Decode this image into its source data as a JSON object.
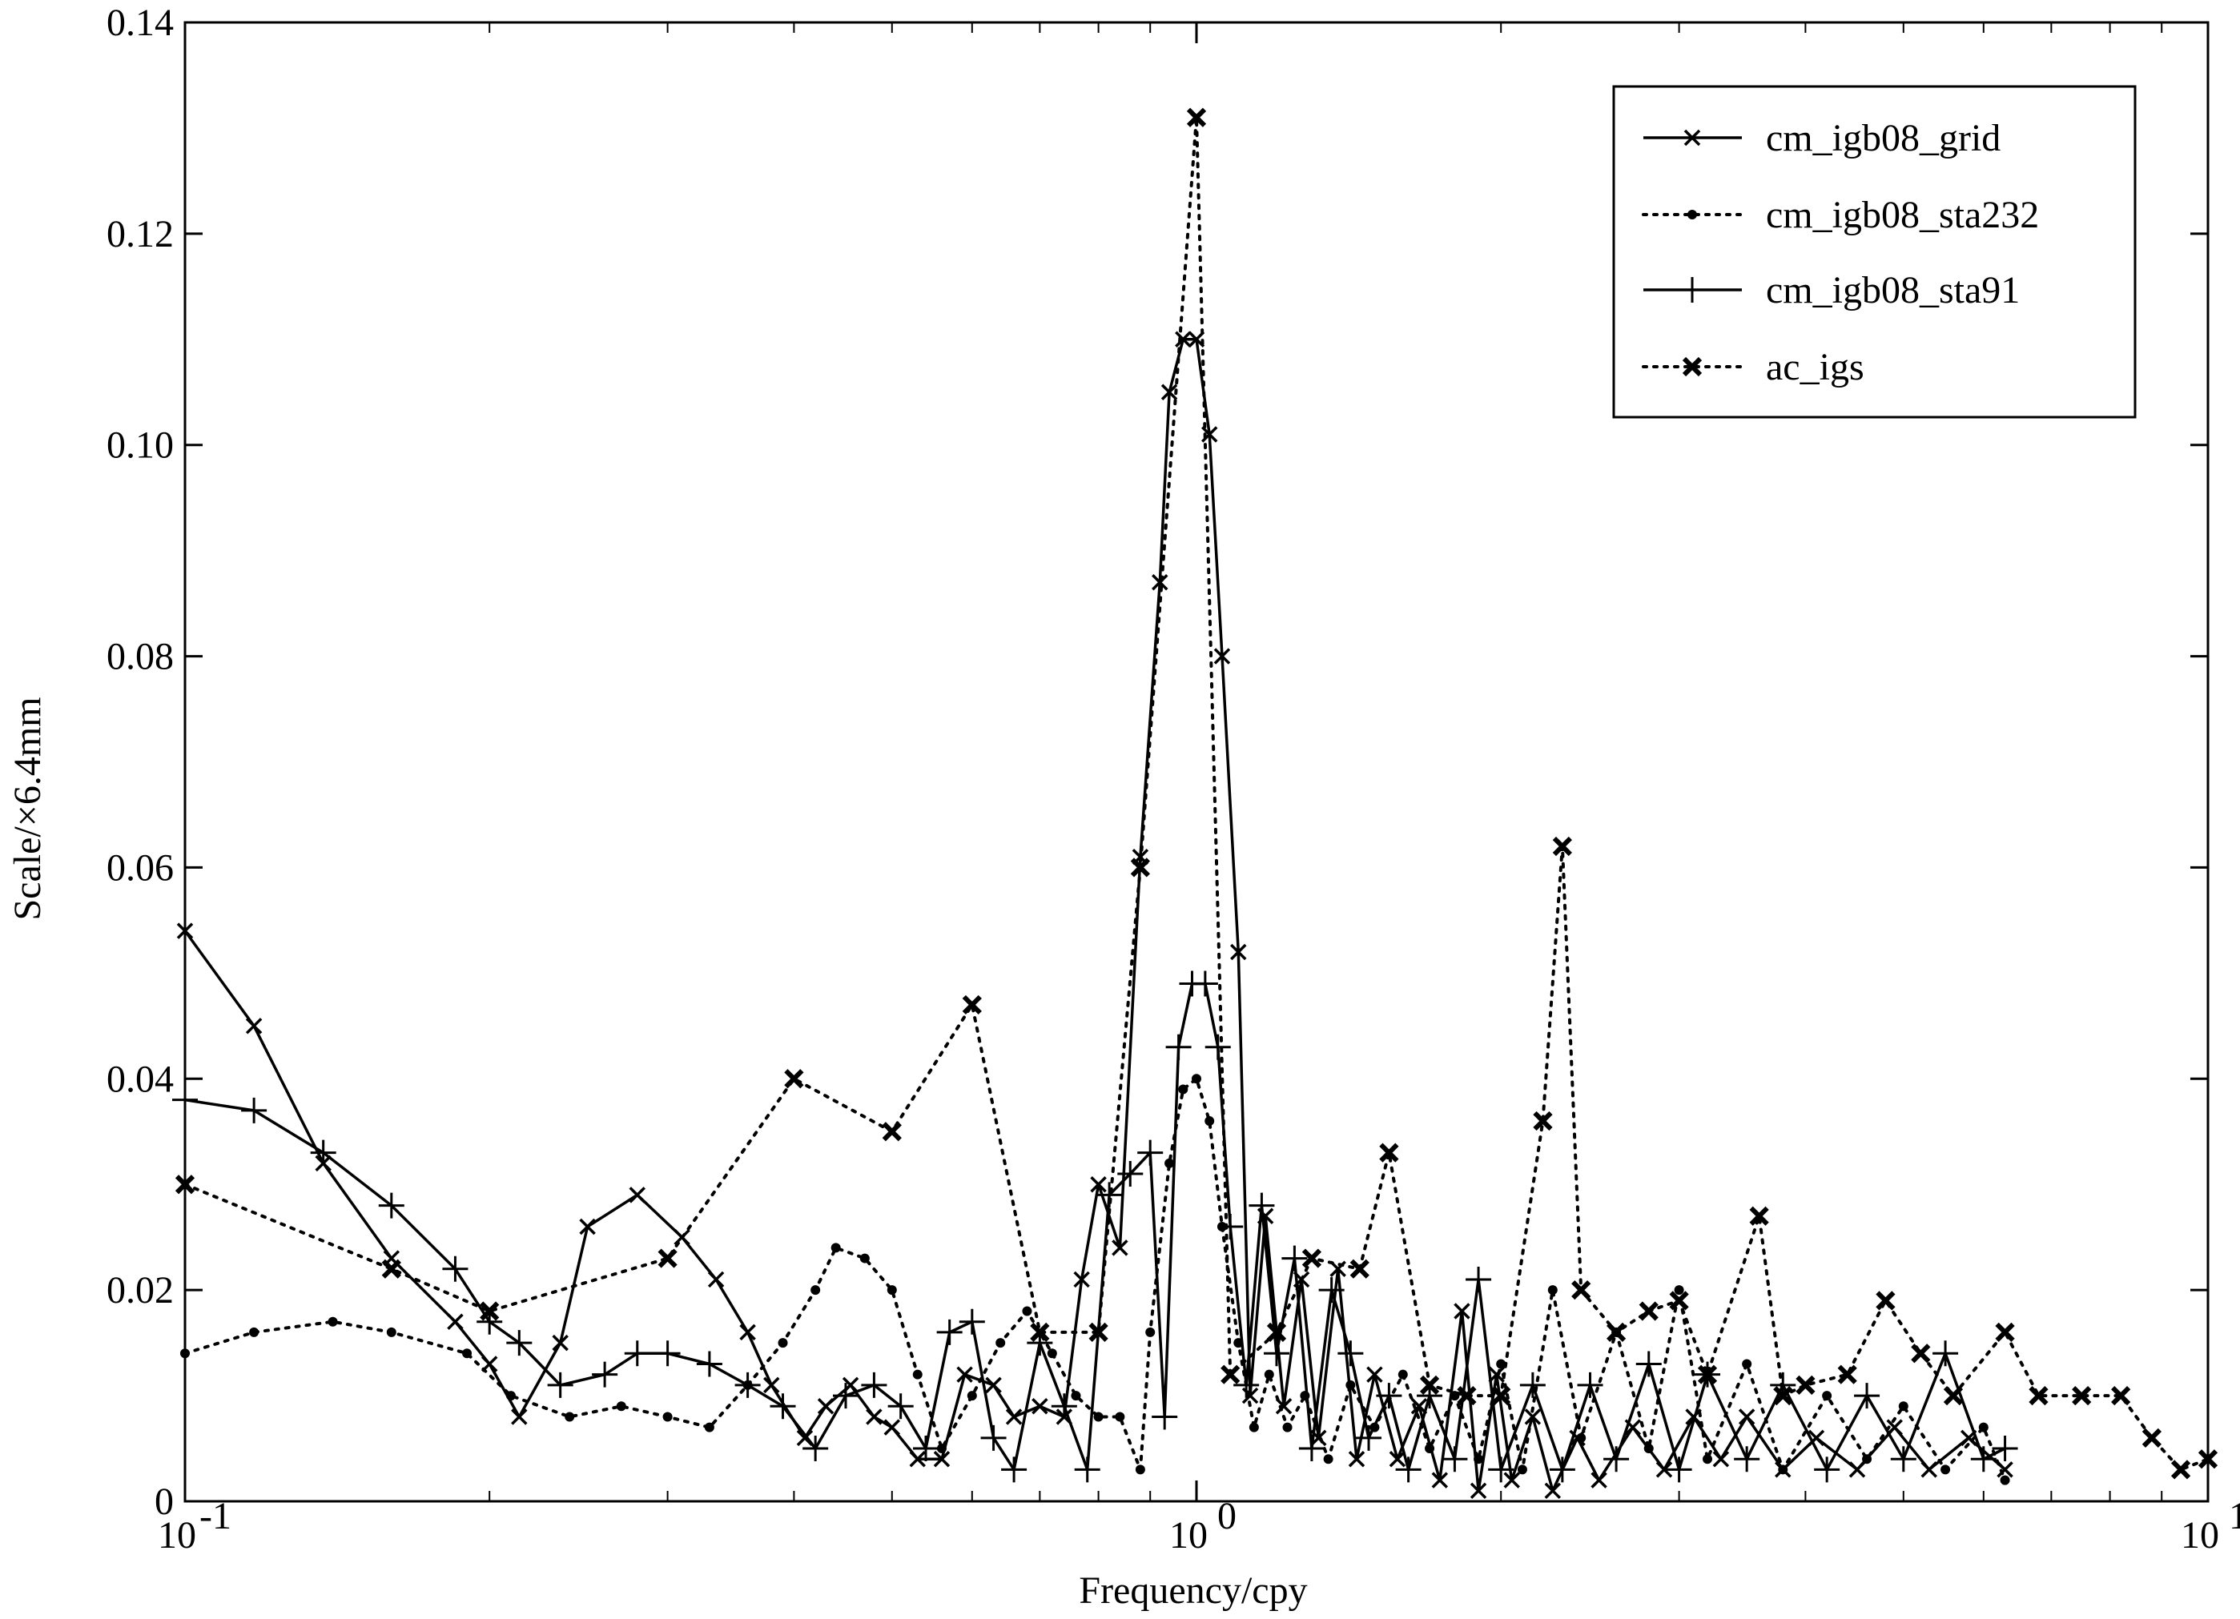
{
  "chart_data": {
    "type": "line",
    "title": "",
    "xlabel": "Frequency/cpy",
    "ylabel": "Scale/×6.4mm",
    "xscale": "log",
    "xlim": [
      0.1,
      10
    ],
    "ylim": [
      0,
      0.14
    ],
    "grid": false,
    "legend_position": "top-right",
    "x_tick_labels": [
      {
        "base": "10",
        "exp": "-1"
      },
      {
        "base": "10",
        "exp": "0"
      },
      {
        "base": "10",
        "exp": "1"
      }
    ],
    "y_tick_labels": [
      "0",
      "0.02",
      "0.04",
      "0.06",
      "0.08",
      "0.10",
      "0.12",
      "0.14"
    ],
    "series": [
      {
        "name": "cm_igb08_grid",
        "line": "solid",
        "marker": "x",
        "points": [
          [
            0.1,
            0.054
          ],
          [
            0.117,
            0.045
          ],
          [
            0.137,
            0.032
          ],
          [
            0.16,
            0.023
          ],
          [
            0.185,
            0.017
          ],
          [
            0.2,
            0.013
          ],
          [
            0.214,
            0.008
          ],
          [
            0.235,
            0.015
          ],
          [
            0.25,
            0.026
          ],
          [
            0.28,
            0.029
          ],
          [
            0.31,
            0.025
          ],
          [
            0.335,
            0.021
          ],
          [
            0.36,
            0.016
          ],
          [
            0.38,
            0.011
          ],
          [
            0.41,
            0.006
          ],
          [
            0.43,
            0.009
          ],
          [
            0.455,
            0.011
          ],
          [
            0.48,
            0.008
          ],
          [
            0.5,
            0.007
          ],
          [
            0.53,
            0.004
          ],
          [
            0.56,
            0.004
          ],
          [
            0.59,
            0.012
          ],
          [
            0.63,
            0.011
          ],
          [
            0.66,
            0.008
          ],
          [
            0.7,
            0.009
          ],
          [
            0.74,
            0.008
          ],
          [
            0.77,
            0.021
          ],
          [
            0.8,
            0.03
          ],
          [
            0.84,
            0.024
          ],
          [
            0.88,
            0.061
          ],
          [
            0.92,
            0.087
          ],
          [
            0.94,
            0.105
          ],
          [
            0.97,
            0.11
          ],
          [
            1.0,
            0.11
          ],
          [
            1.03,
            0.101
          ],
          [
            1.06,
            0.08
          ],
          [
            1.1,
            0.052
          ],
          [
            1.13,
            0.01
          ],
          [
            1.17,
            0.027
          ],
          [
            1.22,
            0.009
          ],
          [
            1.27,
            0.021
          ],
          [
            1.32,
            0.006
          ],
          [
            1.38,
            0.022
          ],
          [
            1.44,
            0.004
          ],
          [
            1.5,
            0.012
          ],
          [
            1.58,
            0.004
          ],
          [
            1.66,
            0.009
          ],
          [
            1.74,
            0.002
          ],
          [
            1.83,
            0.018
          ],
          [
            1.9,
            0.001
          ],
          [
            1.98,
            0.012
          ],
          [
            2.05,
            0.002
          ],
          [
            2.15,
            0.008
          ],
          [
            2.25,
            0.001
          ],
          [
            2.38,
            0.006
          ],
          [
            2.5,
            0.002
          ],
          [
            2.7,
            0.007
          ],
          [
            2.9,
            0.003
          ],
          [
            3.1,
            0.008
          ],
          [
            3.3,
            0.004
          ],
          [
            3.5,
            0.008
          ],
          [
            3.8,
            0.003
          ],
          [
            4.1,
            0.006
          ],
          [
            4.5,
            0.003
          ],
          [
            4.9,
            0.007
          ],
          [
            5.3,
            0.003
          ],
          [
            5.8,
            0.006
          ],
          [
            6.3,
            0.003
          ]
        ]
      },
      {
        "name": "cm_igb08_sta232",
        "line": "dotted",
        "marker": "dot",
        "points": [
          [
            0.1,
            0.014
          ],
          [
            0.117,
            0.016
          ],
          [
            0.14,
            0.017
          ],
          [
            0.16,
            0.016
          ],
          [
            0.19,
            0.014
          ],
          [
            0.21,
            0.01
          ],
          [
            0.24,
            0.008
          ],
          [
            0.27,
            0.009
          ],
          [
            0.3,
            0.008
          ],
          [
            0.33,
            0.007
          ],
          [
            0.36,
            0.011
          ],
          [
            0.39,
            0.015
          ],
          [
            0.42,
            0.02
          ],
          [
            0.44,
            0.024
          ],
          [
            0.47,
            0.023
          ],
          [
            0.5,
            0.02
          ],
          [
            0.53,
            0.012
          ],
          [
            0.56,
            0.005
          ],
          [
            0.6,
            0.01
          ],
          [
            0.64,
            0.015
          ],
          [
            0.68,
            0.018
          ],
          [
            0.72,
            0.014
          ],
          [
            0.76,
            0.01
          ],
          [
            0.8,
            0.008
          ],
          [
            0.84,
            0.008
          ],
          [
            0.88,
            0.003
          ],
          [
            0.9,
            0.016
          ],
          [
            0.94,
            0.032
          ],
          [
            0.97,
            0.039
          ],
          [
            1.0,
            0.04
          ],
          [
            1.03,
            0.036
          ],
          [
            1.06,
            0.026
          ],
          [
            1.1,
            0.015
          ],
          [
            1.14,
            0.007
          ],
          [
            1.18,
            0.012
          ],
          [
            1.23,
            0.007
          ],
          [
            1.28,
            0.01
          ],
          [
            1.35,
            0.004
          ],
          [
            1.42,
            0.011
          ],
          [
            1.5,
            0.007
          ],
          [
            1.6,
            0.012
          ],
          [
            1.7,
            0.005
          ],
          [
            1.8,
            0.01
          ],
          [
            1.9,
            0.004
          ],
          [
            2.0,
            0.013
          ],
          [
            2.1,
            0.003
          ],
          [
            2.25,
            0.02
          ],
          [
            2.4,
            0.006
          ],
          [
            2.6,
            0.016
          ],
          [
            2.8,
            0.005
          ],
          [
            3.0,
            0.02
          ],
          [
            3.2,
            0.004
          ],
          [
            3.5,
            0.013
          ],
          [
            3.8,
            0.003
          ],
          [
            4.2,
            0.01
          ],
          [
            4.6,
            0.004
          ],
          [
            5.0,
            0.009
          ],
          [
            5.5,
            0.003
          ],
          [
            6.0,
            0.007
          ],
          [
            6.3,
            0.002
          ]
        ]
      },
      {
        "name": "cm_igb08_sta91",
        "line": "solid",
        "marker": "plus",
        "points": [
          [
            0.1,
            0.038
          ],
          [
            0.117,
            0.037
          ],
          [
            0.137,
            0.033
          ],
          [
            0.16,
            0.028
          ],
          [
            0.185,
            0.022
          ],
          [
            0.2,
            0.017
          ],
          [
            0.214,
            0.015
          ],
          [
            0.235,
            0.011
          ],
          [
            0.26,
            0.012
          ],
          [
            0.28,
            0.014
          ],
          [
            0.3,
            0.014
          ],
          [
            0.33,
            0.013
          ],
          [
            0.36,
            0.011
          ],
          [
            0.39,
            0.009
          ],
          [
            0.42,
            0.005
          ],
          [
            0.45,
            0.01
          ],
          [
            0.48,
            0.011
          ],
          [
            0.51,
            0.009
          ],
          [
            0.54,
            0.005
          ],
          [
            0.57,
            0.016
          ],
          [
            0.6,
            0.017
          ],
          [
            0.63,
            0.006
          ],
          [
            0.66,
            0.003
          ],
          [
            0.7,
            0.015
          ],
          [
            0.74,
            0.009
          ],
          [
            0.78,
            0.003
          ],
          [
            0.82,
            0.029
          ],
          [
            0.86,
            0.031
          ],
          [
            0.9,
            0.033
          ],
          [
            0.93,
            0.008
          ],
          [
            0.96,
            0.043
          ],
          [
            0.99,
            0.049
          ],
          [
            1.02,
            0.049
          ],
          [
            1.05,
            0.043
          ],
          [
            1.08,
            0.026
          ],
          [
            1.12,
            0.011
          ],
          [
            1.16,
            0.028
          ],
          [
            1.2,
            0.014
          ],
          [
            1.25,
            0.023
          ],
          [
            1.3,
            0.005
          ],
          [
            1.36,
            0.02
          ],
          [
            1.42,
            0.014
          ],
          [
            1.48,
            0.006
          ],
          [
            1.55,
            0.01
          ],
          [
            1.62,
            0.003
          ],
          [
            1.7,
            0.01
          ],
          [
            1.8,
            0.004
          ],
          [
            1.9,
            0.021
          ],
          [
            2.0,
            0.003
          ],
          [
            2.15,
            0.011
          ],
          [
            2.3,
            0.003
          ],
          [
            2.45,
            0.011
          ],
          [
            2.6,
            0.004
          ],
          [
            2.8,
            0.013
          ],
          [
            3.0,
            0.003
          ],
          [
            3.2,
            0.012
          ],
          [
            3.5,
            0.004
          ],
          [
            3.8,
            0.011
          ],
          [
            4.2,
            0.003
          ],
          [
            4.6,
            0.01
          ],
          [
            5.0,
            0.004
          ],
          [
            5.5,
            0.014
          ],
          [
            6.0,
            0.004
          ],
          [
            6.3,
            0.005
          ]
        ]
      },
      {
        "name": "ac_igs",
        "line": "dotted",
        "marker": "x-bold",
        "points": [
          [
            0.1,
            0.03
          ],
          [
            0.16,
            0.022
          ],
          [
            0.2,
            0.018
          ],
          [
            0.3,
            0.023
          ],
          [
            0.4,
            0.04
          ],
          [
            0.5,
            0.035
          ],
          [
            0.6,
            0.047
          ],
          [
            0.7,
            0.016
          ],
          [
            0.8,
            0.016
          ],
          [
            0.88,
            0.06
          ],
          [
            1.0,
            0.131
          ],
          [
            1.08,
            0.012
          ],
          [
            1.2,
            0.016
          ],
          [
            1.3,
            0.023
          ],
          [
            1.45,
            0.022
          ],
          [
            1.55,
            0.033
          ],
          [
            1.7,
            0.011
          ],
          [
            1.85,
            0.01
          ],
          [
            2.0,
            0.01
          ],
          [
            2.2,
            0.036
          ],
          [
            2.3,
            0.062
          ],
          [
            2.4,
            0.02
          ],
          [
            2.6,
            0.016
          ],
          [
            2.8,
            0.018
          ],
          [
            3.0,
            0.019
          ],
          [
            3.2,
            0.012
          ],
          [
            3.6,
            0.027
          ],
          [
            3.8,
            0.01
          ],
          [
            4.0,
            0.011
          ],
          [
            4.4,
            0.012
          ],
          [
            4.8,
            0.019
          ],
          [
            5.2,
            0.014
          ],
          [
            5.6,
            0.01
          ],
          [
            6.3,
            0.016
          ],
          [
            6.8,
            0.01
          ],
          [
            7.5,
            0.01
          ],
          [
            8.2,
            0.01
          ],
          [
            8.8,
            0.006
          ],
          [
            9.4,
            0.003
          ],
          [
            10.0,
            0.004
          ]
        ]
      }
    ]
  }
}
